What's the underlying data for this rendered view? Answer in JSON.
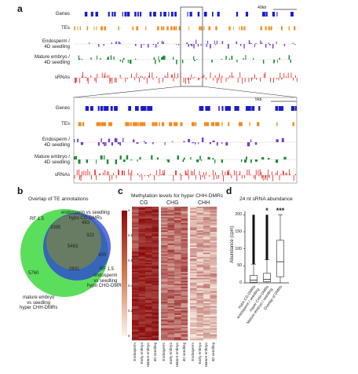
{
  "panel_a": {
    "letter": "a",
    "top_scale": "40kb",
    "bottom_scale": "5kb",
    "tracks": [
      {
        "label": "Genes",
        "color": "#1c1cc8"
      },
      {
        "label": "TEs",
        "color": "#ef8a1c"
      },
      {
        "label": "Endosperm /\n4D seedling",
        "color": "#7a3cc8"
      },
      {
        "label": "Mature embryo /\n4D seedling",
        "color": "#1e8a3a"
      },
      {
        "label": "sRNAs",
        "color": "#e02020"
      }
    ]
  },
  "panel_b": {
    "letter": "b",
    "title": "Overlap of TE annotations",
    "sets": [
      {
        "name": "endosperm vs seedling\nhypo CG-DMRs",
        "color": "#8a8a2a"
      },
      {
        "name": "endosperm\nvs seedling\nhypo CHG-DMRs",
        "color": "#2a3ed8"
      },
      {
        "name": "mature embryo\nvs seedling\nhyper CHH-DMRs",
        "color": "#3ed83e"
      }
    ],
    "counts": [
      "3395",
      "483",
      "322",
      "5463",
      "420",
      "2831",
      "5760"
    ],
    "rf_labels": [
      "RF 1.5",
      "RF 1.5"
    ]
  },
  "panel_c": {
    "letter": "c",
    "title": "Methylation levels for hyper CHH-DMRs",
    "contexts": [
      "CG",
      "CHG",
      "CHH"
    ],
    "samples": [
      "Endosperm",
      "Early embryo",
      "Mature embryo",
      "4D seedling"
    ],
    "colorbar_ticks": [
      "1",
      "0.8",
      "0.6",
      "0.4",
      "0.2",
      "0"
    ]
  },
  "panel_d": {
    "letter": "d",
    "title": "24 nt sRNA abundance",
    "ylabel": "Abundance (cpm)",
    "yticks": [
      "0",
      "50",
      "100",
      "150",
      "200"
    ],
    "categories": [
      "Hypo CG-DMRs\nendosperm / seedling",
      "Hyper CHH-DMRs\nMature embryo / seedling",
      "Overlap of DMRs"
    ],
    "significance": [
      "",
      "*",
      "***"
    ]
  },
  "chart_data": {
    "type": "box",
    "title": "24 nt sRNA abundance",
    "ylabel": "Abundance (cpm)",
    "ylim": [
      0,
      210
    ],
    "categories": [
      "Hypo CG-DMRs endosperm / seedling",
      "Hyper CHH-DMRs Mature embryo / seedling",
      "Overlap of DMRs"
    ],
    "boxes": [
      {
        "min": 0,
        "q1": 2,
        "median": 8,
        "q3": 22,
        "max": 55,
        "outlier_top": 200
      },
      {
        "min": 0,
        "q1": 3,
        "median": 10,
        "q3": 28,
        "max": 68,
        "outlier_top": 200
      },
      {
        "min": 0,
        "q1": 18,
        "median": 62,
        "q3": 125,
        "max": 200,
        "outlier_top": null
      }
    ]
  }
}
